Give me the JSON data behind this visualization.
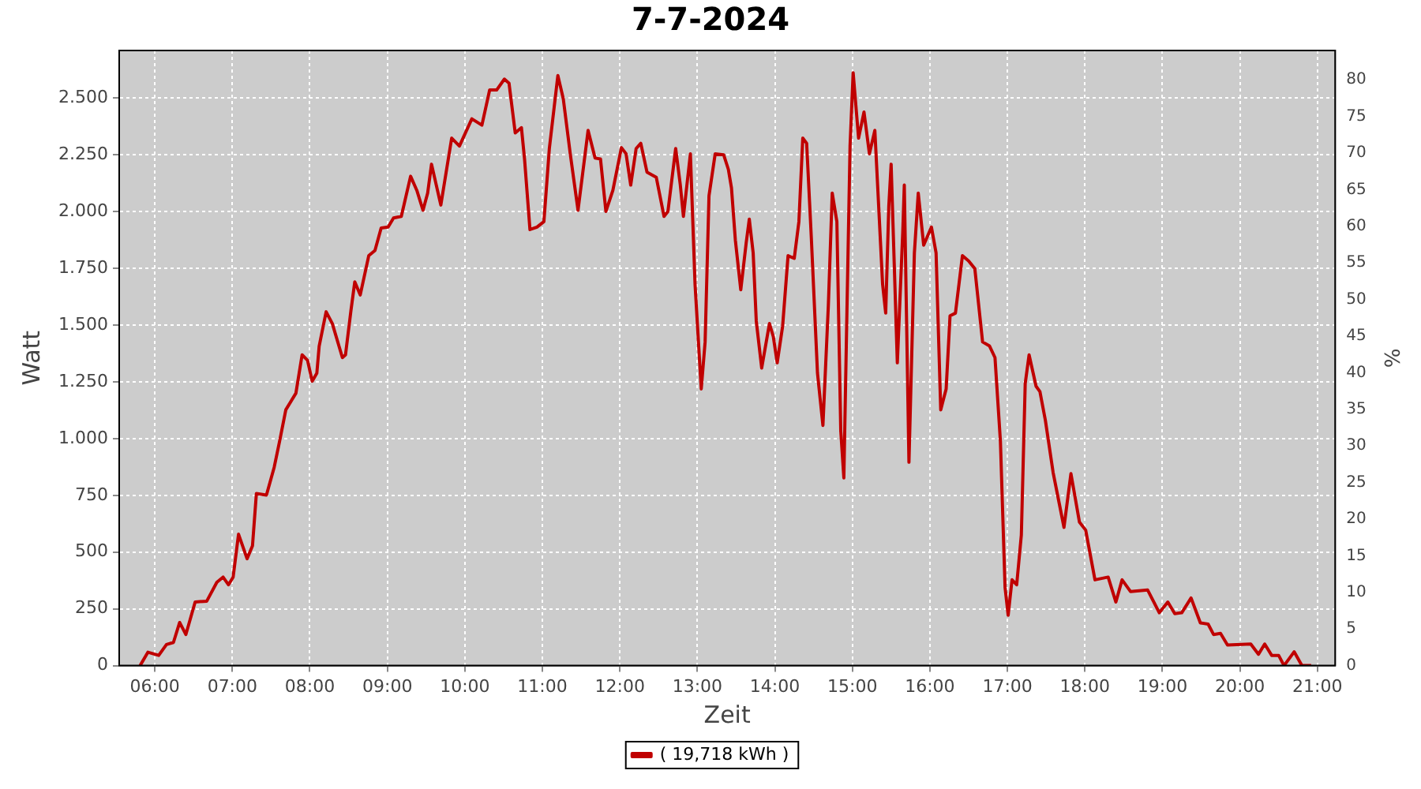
{
  "chart_data": {
    "type": "line",
    "title": "7-7-2024",
    "xlabel": "Zeit",
    "ylabel": "Watt",
    "y2label": "%",
    "x": [
      5.81,
      5.91,
      6.05,
      6.15,
      6.24,
      6.32,
      6.4,
      6.52,
      6.67,
      6.8,
      6.88,
      6.95,
      7.01,
      7.08,
      7.19,
      7.26,
      7.31,
      7.44,
      7.54,
      7.61,
      7.69,
      7.82,
      7.9,
      7.97,
      8.03,
      8.09,
      8.12,
      8.21,
      8.29,
      8.42,
      8.46,
      8.53,
      8.58,
      8.65,
      8.76,
      8.84,
      8.92,
      9.01,
      9.08,
      9.18,
      9.3,
      9.38,
      9.46,
      9.52,
      9.57,
      9.69,
      9.83,
      9.93,
      10.09,
      10.22,
      10.32,
      10.41,
      10.51,
      10.57,
      10.65,
      10.73,
      10.77,
      10.84,
      10.93,
      11.02,
      11.09,
      11.2,
      11.27,
      11.36,
      11.46,
      11.59,
      11.68,
      11.75,
      11.82,
      11.91,
      12.02,
      12.08,
      12.14,
      12.21,
      12.27,
      12.35,
      12.47,
      12.57,
      12.62,
      12.72,
      12.78,
      12.82,
      12.91,
      12.97,
      13.05,
      13.1,
      13.15,
      13.23,
      13.34,
      13.4,
      13.44,
      13.49,
      13.56,
      13.63,
      13.67,
      13.72,
      13.76,
      13.83,
      13.93,
      13.98,
      14.03,
      14.1,
      14.17,
      14.25,
      14.31,
      14.36,
      14.41,
      14.47,
      14.55,
      14.62,
      14.69,
      14.74,
      14.8,
      14.85,
      14.89,
      14.93,
      14.97,
      15.01,
      15.08,
      15.15,
      15.22,
      15.29,
      15.39,
      15.43,
      15.47,
      15.5,
      15.54,
      15.58,
      15.65,
      15.67,
      15.73,
      15.8,
      15.85,
      15.92,
      16.02,
      16.08,
      16.14,
      16.21,
      16.26,
      16.33,
      16.42,
      16.5,
      16.58,
      16.68,
      16.77,
      16.84,
      16.91,
      16.97,
      17.01,
      17.06,
      17.12,
      17.18,
      17.23,
      17.28,
      17.37,
      17.42,
      17.49,
      17.59,
      17.67,
      17.73,
      17.82,
      17.93,
      18.01,
      18.13,
      18.3,
      18.4,
      18.48,
      18.59,
      18.81,
      18.96,
      19.07,
      19.16,
      19.25,
      19.37,
      19.49,
      19.59,
      19.66,
      19.75,
      19.84,
      20.14,
      20.24,
      20.32,
      20.41,
      20.5,
      20.57,
      20.7,
      20.8,
      20.92
    ],
    "series": [
      {
        "name": "( 19,718 kWh )",
        "color": "#c00000",
        "values": [
          0,
          59,
          45,
          93,
          102,
          190,
          137,
          280,
          284,
          367,
          390,
          356,
          390,
          579,
          471,
          528,
          758,
          751,
          874,
          989,
          1127,
          1200,
          1369,
          1345,
          1253,
          1288,
          1407,
          1559,
          1507,
          1357,
          1369,
          1564,
          1691,
          1633,
          1806,
          1829,
          1928,
          1932,
          1972,
          1979,
          2156,
          2094,
          2006,
          2082,
          2209,
          2029,
          2324,
          2289,
          2409,
          2381,
          2536,
          2536,
          2584,
          2566,
          2347,
          2370,
          2232,
          1921,
          1932,
          1956,
          2278,
          2600,
          2497,
          2255,
          2006,
          2358,
          2236,
          2232,
          2001,
          2094,
          2282,
          2255,
          2117,
          2278,
          2301,
          2174,
          2151,
          1979,
          2001,
          2278,
          2117,
          1979,
          2255,
          1680,
          1219,
          1426,
          2070,
          2255,
          2250,
          2186,
          2105,
          1875,
          1656,
          1863,
          1967,
          1818,
          1518,
          1311,
          1507,
          1449,
          1334,
          1495,
          1806,
          1794,
          1956,
          2324,
          2301,
          1887,
          1288,
          1058,
          1587,
          2082,
          1956,
          1035,
          827,
          1564,
          2289,
          2612,
          2324,
          2439,
          2255,
          2358,
          1680,
          1553,
          2025,
          2209,
          1771,
          1334,
          1910,
          2117,
          896,
          1818,
          2082,
          1852,
          1932,
          1818,
          1127,
          1219,
          1541,
          1553,
          1806,
          1783,
          1749,
          1426,
          1408,
          1357,
          989,
          344,
          222,
          378,
          356,
          575,
          1242,
          1369,
          1231,
          1207,
          1081,
          851,
          713,
          609,
          846,
          632,
          597,
          378,
          390,
          280,
          378,
          326,
          333,
          233,
          280,
          229,
          233,
          298,
          188,
          183,
          137,
          142,
          91,
          95,
          50,
          95,
          45,
          45,
          0,
          61,
          0,
          0
        ]
      }
    ],
    "xlim": [
      5.54,
      21.23
    ],
    "xticks": [
      {
        "value": 6,
        "label": "06:00"
      },
      {
        "value": 7,
        "label": "07:00"
      },
      {
        "value": 8,
        "label": "08:00"
      },
      {
        "value": 9,
        "label": "09:00"
      },
      {
        "value": 10,
        "label": "10:00"
      },
      {
        "value": 11,
        "label": "11:00"
      },
      {
        "value": 12,
        "label": "12:00"
      },
      {
        "value": 13,
        "label": "13:00"
      },
      {
        "value": 14,
        "label": "14:00"
      },
      {
        "value": 15,
        "label": "15:00"
      },
      {
        "value": 16,
        "label": "16:00"
      },
      {
        "value": 17,
        "label": "17:00"
      },
      {
        "value": 18,
        "label": "18:00"
      },
      {
        "value": 19,
        "label": "19:00"
      },
      {
        "value": 20,
        "label": "20:00"
      },
      {
        "value": 21,
        "label": "21:00"
      }
    ],
    "ylim": [
      0,
      2710
    ],
    "yticks": [
      0,
      250,
      500,
      750,
      {
        "value": 1000,
        "label": "1.000"
      },
      {
        "value": 1250,
        "label": "1.250"
      },
      {
        "value": 1500,
        "label": "1.500"
      },
      {
        "value": 1750,
        "label": "1.750"
      },
      {
        "value": 2000,
        "label": "2.000"
      },
      {
        "value": 2250,
        "label": "2.250"
      },
      {
        "value": 2500,
        "label": "2.500"
      }
    ],
    "y2lim": [
      0,
      84
    ],
    "y2ticks": [
      0,
      5,
      10,
      15,
      20,
      25,
      30,
      35,
      40,
      45,
      50,
      55,
      60,
      65,
      70,
      75,
      80
    ],
    "grid": true,
    "legend": "bottom"
  }
}
